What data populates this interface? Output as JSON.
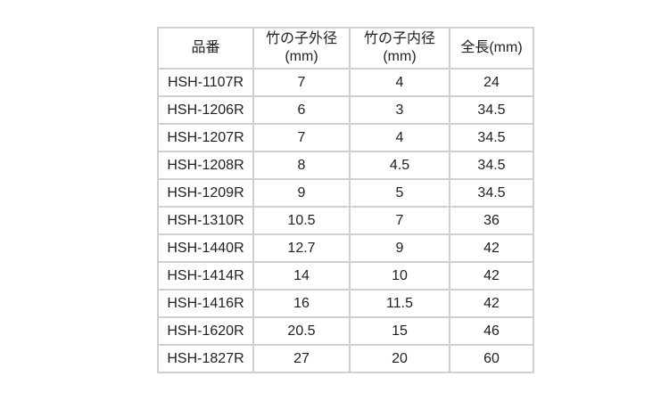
{
  "page": {
    "background_color": "#ffffff",
    "text_color": "#1f1f1f",
    "border_color": "#d0d0d0"
  },
  "table": {
    "columns": [
      {
        "key": "part_number",
        "lines": [
          "品番"
        ]
      },
      {
        "key": "outer_diameter_mm",
        "lines": [
          "竹の子外径",
          "(mm)"
        ]
      },
      {
        "key": "inner_diameter_mm",
        "lines": [
          "竹の子内径",
          "(mm)"
        ]
      },
      {
        "key": "total_length_mm",
        "lines": [
          "全長(mm)"
        ]
      }
    ],
    "rows": [
      [
        "HSH-1107R",
        "7",
        "4",
        "24"
      ],
      [
        "HSH-1206R",
        "6",
        "3",
        "34.5"
      ],
      [
        "HSH-1207R",
        "7",
        "4",
        "34.5"
      ],
      [
        "HSH-1208R",
        "8",
        "4.5",
        "34.5"
      ],
      [
        "HSH-1209R",
        "9",
        "5",
        "34.5"
      ],
      [
        "HSH-1310R",
        "10.5",
        "7",
        "36"
      ],
      [
        "HSH-1440R",
        "12.7",
        "9",
        "42"
      ],
      [
        "HSH-1414R",
        "14",
        "10",
        "42"
      ],
      [
        "HSH-1416R",
        "16",
        "11.5",
        "42"
      ],
      [
        "HSH-1620R",
        "20.5",
        "15",
        "46"
      ],
      [
        "HSH-1827R",
        "27",
        "20",
        "60"
      ]
    ]
  },
  "chart_data": {
    "type": "table",
    "columns": [
      "品番",
      "竹の子外径(mm)",
      "竹の子内径(mm)",
      "全長(mm)"
    ],
    "rows": [
      [
        "HSH-1107R",
        7,
        4,
        24
      ],
      [
        "HSH-1206R",
        6,
        3,
        34.5
      ],
      [
        "HSH-1207R",
        7,
        4,
        34.5
      ],
      [
        "HSH-1208R",
        8,
        4.5,
        34.5
      ],
      [
        "HSH-1209R",
        9,
        5,
        34.5
      ],
      [
        "HSH-1310R",
        10.5,
        7,
        36
      ],
      [
        "HSH-1440R",
        12.7,
        9,
        42
      ],
      [
        "HSH-1414R",
        14,
        10,
        42
      ],
      [
        "HSH-1416R",
        16,
        11.5,
        42
      ],
      [
        "HSH-1620R",
        20.5,
        15,
        46
      ],
      [
        "HSH-1827R",
        27,
        20,
        60
      ]
    ]
  }
}
